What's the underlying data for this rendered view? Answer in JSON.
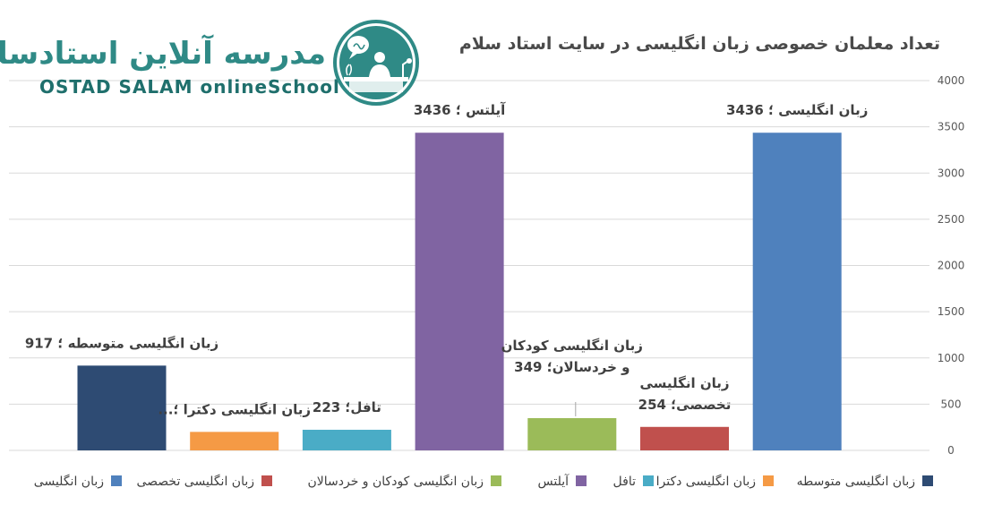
{
  "brand": {
    "name_fa": "مدرسه آنلاین استادسلام",
    "name_en": "OSTAD SALAM onlineSchool"
  },
  "colors": {
    "teal": "#2f8a86",
    "grid": "#d9d9d9",
    "axis_text": "#595959"
  },
  "chart_data": {
    "type": "bar",
    "title": "تعداد معلمان خصوصی زبان انگلیسی در سایت استاد سلام",
    "ylim": [
      0,
      4000
    ],
    "yticks": [
      "0",
      "500",
      "1000",
      "1500",
      "2000",
      "2500",
      "3000",
      "3500",
      "4000"
    ],
    "y_axis_side": "right",
    "grid": true,
    "legend_position": "bottom",
    "categories": [
      "زبان انگلیسی متوسطه",
      "زبان انگلیسی دکترا",
      "تافل",
      "آیلتس",
      "زبان انگلیسی کودکان و خردسالان",
      "زبان انگلیسی تخصصی",
      "زبان انگلیسی"
    ],
    "series": [
      {
        "name": "زبان انگلیسی متوسطه",
        "value": 917,
        "color": "#2e4b73",
        "label_lines": [
          "زبان انگلیسی متوسطه ؛ 917"
        ]
      },
      {
        "name": "زبان انگلیسی دکترا",
        "value": 200,
        "color": "#f59a45",
        "label_lines": [
          "زبان انگلیسی دکترا ؛..."
        ]
      },
      {
        "name": "تافل",
        "value": 223,
        "color": "#4aacc6",
        "label_lines": [
          "تافل؛ 223"
        ]
      },
      {
        "name": "آیلتس",
        "value": 3436,
        "color": "#8064a2",
        "label_lines": [
          "آیلتس ؛ 3436"
        ]
      },
      {
        "name": "زبان انگلیسی کودکان و خردسالان",
        "value": 349,
        "color": "#9bbb59",
        "label_lines": [
          "زبان انگلیسی کودکان",
          "و خردسالان؛ 349"
        ]
      },
      {
        "name": "زبان انگلیسی تخصصی",
        "value": 254,
        "color": "#c0504d",
        "label_lines": [
          "زبان انگلیسی",
          "تخصصی؛ 254"
        ]
      },
      {
        "name": "زبان انگلیسی",
        "value": 3436,
        "color": "#4f81bd",
        "label_lines": [
          "زبان انگلیسی ؛ 3436"
        ]
      }
    ]
  }
}
